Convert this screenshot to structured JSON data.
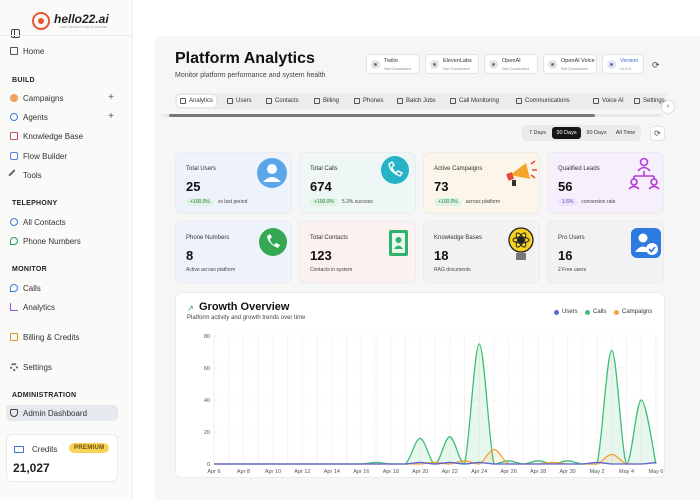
{
  "brand": {
    "name": "hello22.ai",
    "tagline": "THE PRODUCTIVE AI ENGINE"
  },
  "sidebar": {
    "home": "Home",
    "sections": {
      "build": "BUILD",
      "telephony": "TELEPHONY",
      "monitor": "MONITOR",
      "administration": "ADMINISTRATION"
    },
    "build_items": [
      "Campaigns",
      "Agents",
      "Knowledge Base",
      "Flow Builder",
      "Tools"
    ],
    "telephony_items": [
      "All Contacts",
      "Phone Numbers"
    ],
    "monitor_items": [
      "Calls",
      "Analytics"
    ],
    "billing": "Billing & Credits",
    "settings": "Settings",
    "admin_dashboard": "Admin Dashboard",
    "credits": {
      "label": "Credits",
      "badge": "PREMIUM",
      "value": "21,027"
    }
  },
  "header": {
    "title": "Platform Analytics",
    "subtitle": "Monitor platform performance and system health"
  },
  "services": [
    {
      "name": "Twilio",
      "status": "Not Connected"
    },
    {
      "name": "ElevenLabs",
      "status": "Not Connected"
    },
    {
      "name": "OpenAI",
      "status": "Not Connected"
    },
    {
      "name": "OpenAI Voice",
      "status": "Not Connected"
    },
    {
      "name": "Version",
      "status": "v1.0.0"
    }
  ],
  "tabs": [
    "Analytics",
    "Users",
    "Contacts",
    "Billing",
    "Phones",
    "Batch Jobs",
    "Call Monitoring",
    "Communications",
    "Voice AI",
    "Settings"
  ],
  "ranges": [
    "7 Days",
    "30 Days",
    "90 Days",
    "All Time"
  ],
  "cards": [
    {
      "label": "Total Users",
      "value": "25",
      "badge": "+100.0%",
      "foot": "vs last period",
      "color": "#eef3fb"
    },
    {
      "label": "Total Calls",
      "value": "674",
      "badge": "+100.0%",
      "foot": "5.3% success",
      "color": "#eef7f6"
    },
    {
      "label": "Active Campaigns",
      "value": "73",
      "badge": "+100.0%",
      "foot": "across platform",
      "color": "#fbf6e9"
    },
    {
      "label": "Qualified Leads",
      "value": "56",
      "badge": "1.6%",
      "foot": "conversion rate",
      "color": "#f5f0fb"
    },
    {
      "label": "Phone Numbers",
      "value": "8",
      "foot": "Active across platform",
      "color": "#eef3fb"
    },
    {
      "label": "Total Contacts",
      "value": "123",
      "foot": "Contacts in system",
      "color": "#fbf1f1"
    },
    {
      "label": "Knowledge Bases",
      "value": "18",
      "foot": "RAG documents",
      "color": "#f2f2f4"
    },
    {
      "label": "Pro Users",
      "value": "16",
      "foot": "2 Free users",
      "color": "#f2f2f4"
    }
  ],
  "chart_data": {
    "type": "area",
    "title": "Growth Overview",
    "subtitle": "Platform activity and growth trends over time",
    "legend_position": "top-right",
    "ylim": [
      0,
      80
    ],
    "yticks": [
      0,
      20,
      40,
      60,
      80
    ],
    "x": [
      "Apr 6",
      "Apr 7",
      "Apr 8",
      "Apr 9",
      "Apr 10",
      "Apr 11",
      "Apr 12",
      "Apr 13",
      "Apr 14",
      "Apr 15",
      "Apr 16",
      "Apr 17",
      "Apr 18",
      "Apr 19",
      "Apr 20",
      "Apr 21",
      "Apr 22",
      "Apr 23",
      "Apr 24",
      "Apr 25",
      "Apr 26",
      "Apr 27",
      "Apr 28",
      "Apr 29",
      "Apr 30",
      "May 1",
      "May 2",
      "May 3",
      "May 4",
      "May 5",
      "May 6"
    ],
    "xticks": [
      "Apr 6",
      "Apr 8",
      "Apr 10",
      "Apr 12",
      "Apr 14",
      "Apr 16",
      "Apr 18",
      "Apr 20",
      "Apr 22",
      "Apr 24",
      "Apr 26",
      "Apr 28",
      "Apr 30",
      "May 2",
      "May 4",
      "May 6"
    ],
    "series": [
      {
        "name": "Users",
        "color": "#5b63d8",
        "values": [
          0,
          0,
          0,
          0,
          0,
          0,
          0,
          0,
          0,
          0,
          0,
          0,
          0,
          0,
          1,
          0,
          1,
          0,
          1,
          0,
          0,
          0,
          0,
          0,
          0,
          0,
          1,
          0,
          0,
          0,
          1
        ]
      },
      {
        "name": "Calls",
        "color": "#3fbf75",
        "values": [
          0,
          0,
          0,
          0,
          0,
          0,
          0,
          0,
          0,
          0,
          0,
          1,
          0,
          0,
          16,
          0,
          17,
          0,
          75,
          0,
          2,
          0,
          2,
          0,
          2,
          0,
          0,
          71,
          0,
          40,
          0
        ]
      },
      {
        "name": "Campaigns",
        "color": "#f2a33a",
        "values": [
          0,
          0,
          0,
          0,
          0,
          0,
          0,
          0,
          0,
          0,
          0,
          0,
          0,
          0,
          0,
          1,
          0,
          2,
          0,
          9,
          0,
          0,
          0,
          1,
          0,
          0,
          0,
          6,
          0,
          0,
          1
        ]
      }
    ]
  }
}
